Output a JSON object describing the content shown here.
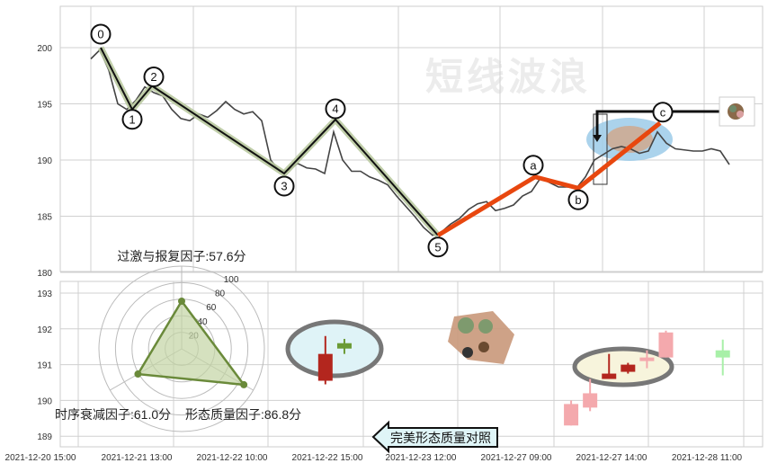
{
  "watermark": "短线波浪",
  "chart_data": [
    {
      "type": "line",
      "title": "",
      "ylim": [
        180,
        203.7
      ],
      "y_ticks": [
        "200",
        "195",
        "190",
        "185",
        "180"
      ],
      "grid": true,
      "price_series": [
        199,
        199.8,
        198,
        195,
        194.5,
        195.3,
        196.5,
        196,
        195.7,
        194.5,
        193.7,
        193.5,
        194.1,
        193.8,
        194.4,
        195.2,
        194.5,
        194.1,
        194.3,
        193.5,
        190,
        189,
        189.1,
        189.7,
        189.3,
        189.2,
        188.8,
        192.5,
        190,
        189,
        189,
        188.5,
        188.2,
        187.8,
        186.8,
        185.9,
        185,
        184,
        183.3,
        183.6,
        184.3,
        184.8,
        185.6,
        186.1,
        186.3,
        185.5,
        185.7,
        186,
        186.8,
        187.2,
        188.4,
        188,
        187.6,
        187.6,
        187.5,
        188.5,
        190,
        190.5,
        191,
        191.2,
        191,
        190.6,
        190.8,
        192.5,
        191.5,
        191,
        190.9,
        190.8,
        190.8,
        191,
        190.8,
        189.6
      ],
      "wave_points": [
        {
          "label": "0",
          "index": 1.1,
          "value": 200.0
        },
        {
          "label": "1",
          "index": 4.6,
          "value": 194.5
        },
        {
          "label": "2",
          "index": 6.8,
          "value": 196.6
        },
        {
          "label": "3",
          "index": 21.5,
          "value": 188.8
        },
        {
          "label": "4",
          "index": 27.2,
          "value": 193.6
        },
        {
          "label": "5",
          "index": 38.6,
          "value": 183.3
        },
        {
          "label": "a",
          "index": 49.4,
          "value": 188.5
        },
        {
          "label": "b",
          "index": 54.2,
          "value": 187.5
        },
        {
          "label": "c",
          "index": 63.3,
          "value": 193.3
        }
      ],
      "colors": {
        "price": "#444444",
        "impulse": "#111111",
        "impulse_halo": "#b9c9a0",
        "correction": "#e8470f"
      }
    },
    {
      "type": "candlestick",
      "ylim": [
        188.7,
        193.3
      ],
      "y_ticks": [
        "193",
        "192",
        "191",
        "190",
        "189"
      ],
      "x_ticks": [
        "2021-12-20 15:00",
        "2021-12-21 13:00",
        "2021-12-22 10:00",
        "2021-12-22 15:00",
        "2021-12-23 12:00",
        "2021-12-27 09:00",
        "2021-12-27 14:00",
        "2021-12-28 11:00"
      ],
      "grid": true,
      "candles": [
        {
          "slot": 2.6,
          "open": 191.3,
          "close": 190.55,
          "high": 191.8,
          "low": 190.45,
          "style": "bear"
        },
        {
          "slot": 2.8,
          "open": 191.45,
          "close": 191.6,
          "high": 191.72,
          "low": 191.3,
          "style": "bull"
        },
        {
          "slot": 5.2,
          "open": 189.9,
          "close": 189.3,
          "high": 190.0,
          "low": 189.3,
          "style": "bear-faded"
        },
        {
          "slot": 5.4,
          "open": 190.2,
          "close": 189.8,
          "high": 190.6,
          "low": 189.7,
          "style": "bear-faded"
        },
        {
          "slot": 5.6,
          "open": 190.75,
          "close": 190.6,
          "high": 191.3,
          "low": 190.6,
          "style": "bear"
        },
        {
          "slot": 5.8,
          "open": 191.0,
          "close": 190.8,
          "high": 191.05,
          "low": 190.75,
          "style": "bear"
        },
        {
          "slot": 6.0,
          "open": 191.2,
          "close": 191.1,
          "high": 191.4,
          "low": 190.9,
          "style": "bear-faded"
        },
        {
          "slot": 6.2,
          "open": 191.9,
          "close": 191.2,
          "high": 191.95,
          "low": 191.2,
          "style": "bear-faded"
        },
        {
          "slot": 6.8,
          "open": 191.2,
          "close": 191.4,
          "high": 191.7,
          "low": 190.7,
          "style": "bull-faded"
        }
      ],
      "colors": {
        "bear": "#b3261e",
        "bull": "#6b9a35",
        "bear-faded": "#f4a9ad",
        "bull-faded": "#a8f0a8"
      }
    },
    {
      "type": "radar",
      "r_ticks": [
        "20",
        "40",
        "60",
        "80",
        "100"
      ],
      "axes": [
        {
          "label": "过激与报复因子:57.6分",
          "value": 57.6
        },
        {
          "label": "时序衰减因子:61.0分",
          "value": 61.0
        },
        {
          "label": "形态质量因子:86.8分",
          "value": 86.8
        }
      ],
      "colors": {
        "fill": "#c3d4a4",
        "stroke": "#6a8a3a"
      }
    }
  ],
  "callout": {
    "label": "完美形态质量对照"
  }
}
